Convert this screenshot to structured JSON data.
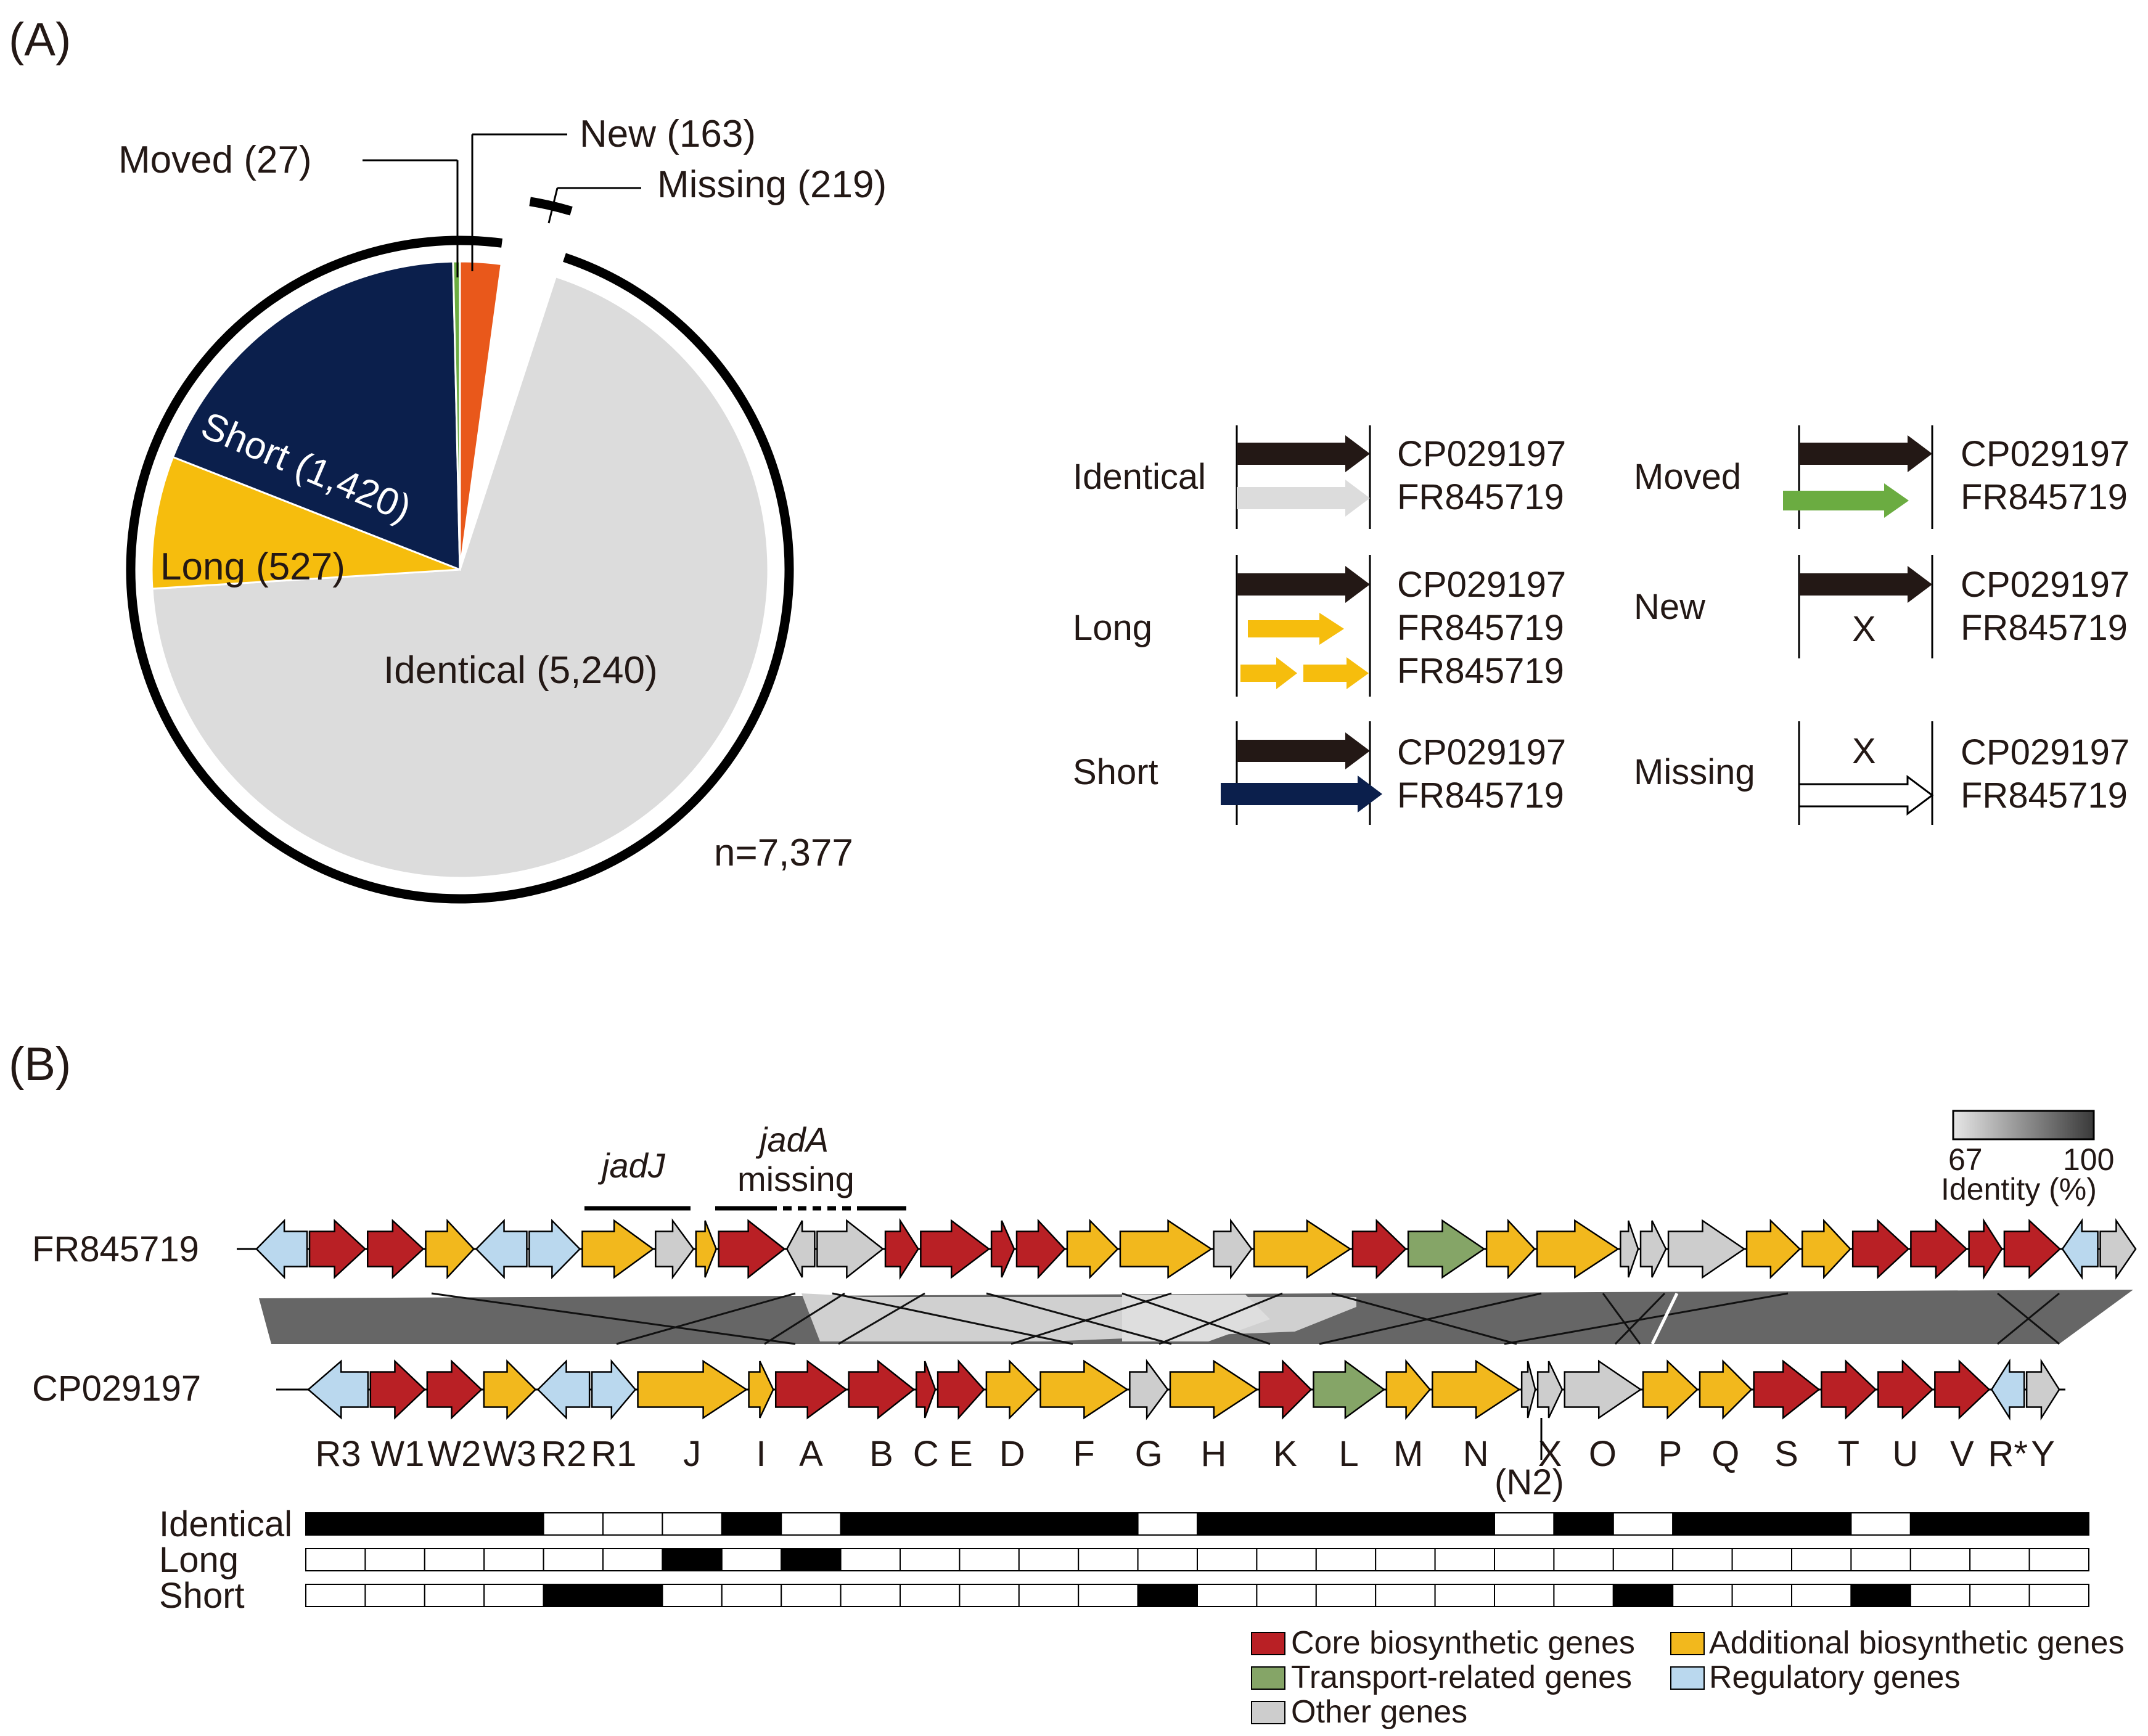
{
  "panel_a_label": "(A)",
  "panel_b_label": "(B)",
  "colors": {
    "identical": "#dcdcdc",
    "long": "#f6bd0d",
    "short": "#0b1f4c",
    "moved": "#6bac41",
    "new": "#e9581b",
    "missing": "#ffffff",
    "black_arrow": "#231815",
    "core": "#b92025",
    "additional": "#f2b81d",
    "transport": "#85a567",
    "regulatory": "#bad8ee",
    "other": "#cdcdcd",
    "ribbon_dark": "#666666",
    "ribbon_light": "#d0d0d0"
  },
  "chart_data": [
    {
      "type": "pie",
      "title": "",
      "total_label": "n=7,377",
      "slices": [
        {
          "key": "identical",
          "name": "Identical",
          "value": 5240,
          "label": "Identical (5,240)"
        },
        {
          "key": "long",
          "name": "Long",
          "value": 527,
          "label": "Long (527)"
        },
        {
          "key": "short",
          "name": "Short",
          "value": 1420,
          "label": "Short (1,420)"
        },
        {
          "key": "moved",
          "name": "Moved",
          "value": 27,
          "label": "Moved (27)"
        },
        {
          "key": "new",
          "name": "New",
          "value": 163,
          "label": "New (163)"
        },
        {
          "key": "missing",
          "name": "Missing",
          "value": 219,
          "label": "Missing (219)"
        }
      ],
      "legend": {
        "ref": "CP029197",
        "query": "FR845719",
        "absent_mark": "X",
        "items": [
          {
            "key": "identical",
            "label": "Identical"
          },
          {
            "key": "long",
            "label": "Long"
          },
          {
            "key": "short",
            "label": "Short"
          },
          {
            "key": "moved",
            "label": "Moved"
          },
          {
            "key": "new",
            "label": "New"
          },
          {
            "key": "missing",
            "label": "Missing"
          }
        ]
      }
    },
    {
      "type": "gene_cluster_comparison",
      "tracks": [
        "FR845719",
        "CP029197"
      ],
      "identity_scale": {
        "min": 67,
        "max": 100,
        "label": "Identity (%)"
      },
      "annotations": [
        {
          "italic": "jadJ",
          "text": ""
        },
        {
          "italic": "jadA",
          "text": "missing"
        }
      ],
      "gene_labels": [
        "R3",
        "W1",
        "W2",
        "W3",
        "R2",
        "R1",
        "J",
        "I",
        "A",
        "B",
        "C",
        "E",
        "D",
        "F",
        "G",
        "H",
        "K",
        "L",
        "M",
        "N",
        "X",
        "O",
        "P",
        "Q",
        "S",
        "T",
        "U",
        "V",
        "R*",
        "Y"
      ],
      "special_label": "(N2)",
      "fr845719_genes": [
        {
          "cat": "regulatory",
          "dir": "left",
          "rel": 1
        },
        {
          "cat": "core",
          "dir": "right",
          "rel": 1.1
        },
        {
          "cat": "core",
          "dir": "right",
          "rel": 1.1
        },
        {
          "cat": "additional",
          "dir": "right",
          "rel": 0.95
        },
        {
          "cat": "regulatory",
          "dir": "left",
          "rel": 1
        },
        {
          "cat": "regulatory",
          "dir": "right",
          "rel": 1
        },
        {
          "cat": "additional",
          "dir": "right",
          "rel": 1.4
        },
        {
          "cat": "other",
          "dir": "right",
          "rel": 0.75
        },
        {
          "cat": "additional",
          "dir": "right",
          "rel": 0.4
        },
        {
          "cat": "core",
          "dir": "right",
          "rel": 1.3
        },
        {
          "cat": "other",
          "dir": "left",
          "rel": 0.55
        },
        {
          "cat": "other",
          "dir": "right",
          "rel": 1.3
        },
        {
          "cat": "core",
          "dir": "right",
          "rel": 0.65
        },
        {
          "cat": "core",
          "dir": "right",
          "rel": 1.35
        },
        {
          "cat": "core",
          "dir": "right",
          "rel": 0.45
        },
        {
          "cat": "core",
          "dir": "right",
          "rel": 0.95
        },
        {
          "cat": "additional",
          "dir": "right",
          "rel": 1.0
        },
        {
          "cat": "additional",
          "dir": "right",
          "rel": 1.8
        },
        {
          "cat": "other",
          "dir": "right",
          "rel": 0.75
        },
        {
          "cat": "additional",
          "dir": "right",
          "rel": 1.9
        },
        {
          "cat": "core",
          "dir": "right",
          "rel": 1.05
        },
        {
          "cat": "transport",
          "dir": "right",
          "rel": 1.5
        },
        {
          "cat": "additional",
          "dir": "right",
          "rel": 0.95
        },
        {
          "cat": "additional",
          "dir": "right",
          "rel": 1.6
        },
        {
          "cat": "other",
          "dir": "right",
          "rel": 0.35
        },
        {
          "cat": "other",
          "dir": "right",
          "rel": 0.5
        },
        {
          "cat": "other",
          "dir": "right",
          "rel": 1.5
        },
        {
          "cat": "additional",
          "dir": "right",
          "rel": 1.05
        },
        {
          "cat": "additional",
          "dir": "right",
          "rel": 0.95
        },
        {
          "cat": "core",
          "dir": "right",
          "rel": 1.1
        },
        {
          "cat": "core",
          "dir": "right",
          "rel": 1.1
        },
        {
          "cat": "core",
          "dir": "right",
          "rel": 0.65
        },
        {
          "cat": "core",
          "dir": "right",
          "rel": 1.1
        },
        {
          "cat": "regulatory",
          "dir": "left",
          "rel": 0.7
        },
        {
          "cat": "other",
          "dir": "right",
          "rel": 0.7
        }
      ],
      "cp029197_genes": [
        {
          "cat": "regulatory",
          "dir": "left",
          "rel": 1.1
        },
        {
          "cat": "core",
          "dir": "right",
          "rel": 1.0
        },
        {
          "cat": "core",
          "dir": "right",
          "rel": 1.0
        },
        {
          "cat": "additional",
          "dir": "right",
          "rel": 0.95
        },
        {
          "cat": "regulatory",
          "dir": "left",
          "rel": 0.95
        },
        {
          "cat": "regulatory",
          "dir": "right",
          "rel": 0.8
        },
        {
          "cat": "additional",
          "dir": "right",
          "rel": 2.0
        },
        {
          "cat": "additional",
          "dir": "right",
          "rel": 0.45
        },
        {
          "cat": "core",
          "dir": "right",
          "rel": 1.3
        },
        {
          "cat": "core",
          "dir": "right",
          "rel": 1.2
        },
        {
          "cat": "core",
          "dir": "right",
          "rel": 0.35
        },
        {
          "cat": "core",
          "dir": "right",
          "rel": 0.85
        },
        {
          "cat": "additional",
          "dir": "right",
          "rel": 0.95
        },
        {
          "cat": "additional",
          "dir": "right",
          "rel": 1.6
        },
        {
          "cat": "other",
          "dir": "right",
          "rel": 0.7
        },
        {
          "cat": "additional",
          "dir": "right",
          "rel": 1.6
        },
        {
          "cat": "core",
          "dir": "right",
          "rel": 0.95
        },
        {
          "cat": "transport",
          "dir": "right",
          "rel": 1.3
        },
        {
          "cat": "additional",
          "dir": "right",
          "rel": 0.8
        },
        {
          "cat": "additional",
          "dir": "right",
          "rel": 1.6
        },
        {
          "cat": "other",
          "dir": "right",
          "rel": 0.25
        },
        {
          "cat": "other",
          "dir": "right",
          "rel": 0.45
        },
        {
          "cat": "other",
          "dir": "right",
          "rel": 1.4
        },
        {
          "cat": "additional",
          "dir": "right",
          "rel": 1.0
        },
        {
          "cat": "additional",
          "dir": "right",
          "rel": 0.95
        },
        {
          "cat": "core",
          "dir": "right",
          "rel": 1.2
        },
        {
          "cat": "core",
          "dir": "right",
          "rel": 1.0
        },
        {
          "cat": "core",
          "dir": "right",
          "rel": 1.0
        },
        {
          "cat": "core",
          "dir": "right",
          "rel": 1.0
        },
        {
          "cat": "regulatory",
          "dir": "left",
          "rel": 0.6
        },
        {
          "cat": "other",
          "dir": "right",
          "rel": 0.6
        }
      ],
      "gene_categories": [
        {
          "key": "core",
          "label": "Core biosynthetic genes"
        },
        {
          "key": "additional",
          "label": "Additional biosynthetic genes"
        },
        {
          "key": "transport",
          "label": "Transport-related genes"
        },
        {
          "key": "regulatory",
          "label": "Regulatory genes"
        },
        {
          "key": "other",
          "label": "Other genes"
        }
      ],
      "classification_rows": [
        {
          "name": "Identical",
          "states": [
            1,
            1,
            1,
            1,
            0,
            0,
            0,
            1,
            0,
            1,
            1,
            1,
            1,
            1,
            0,
            1,
            1,
            1,
            1,
            1,
            0,
            1,
            0,
            1,
            1,
            1,
            0,
            1,
            1,
            1
          ]
        },
        {
          "name": "Long",
          "states": [
            0,
            0,
            0,
            0,
            0,
            0,
            1,
            0,
            1,
            0,
            0,
            0,
            0,
            0,
            0,
            0,
            0,
            0,
            0,
            0,
            0,
            0,
            0,
            0,
            0,
            0,
            0,
            0,
            0,
            0
          ]
        },
        {
          "name": "Short",
          "states": [
            0,
            0,
            0,
            0,
            1,
            1,
            0,
            0,
            0,
            0,
            0,
            0,
            0,
            0,
            1,
            0,
            0,
            0,
            0,
            0,
            0,
            0,
            1,
            0,
            0,
            0,
            1,
            0,
            0,
            0
          ]
        }
      ]
    }
  ]
}
